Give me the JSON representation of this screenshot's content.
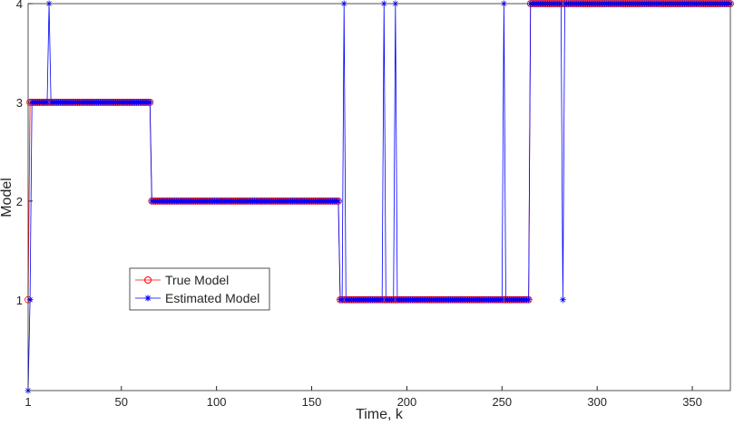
{
  "chart_data": {
    "type": "line",
    "x_label": "Time, k",
    "y_label": "Model",
    "xlim": [
      1,
      370
    ],
    "ylim": [
      0.08,
      4
    ],
    "xticks": [
      1,
      50,
      100,
      150,
      200,
      250,
      300,
      350
    ],
    "yticks": [
      1,
      2,
      3,
      4
    ],
    "legend": "lower-left",
    "x": [
      1,
      2,
      3,
      4,
      5,
      6,
      7,
      8,
      9,
      10,
      11,
      12,
      13,
      14,
      15,
      16,
      17,
      18,
      19,
      20,
      21,
      22,
      23,
      24,
      25,
      26,
      27,
      28,
      29,
      30,
      31,
      32,
      33,
      34,
      35,
      36,
      37,
      38,
      39,
      40,
      41,
      42,
      43,
      44,
      45,
      46,
      47,
      48,
      49,
      50,
      51,
      52,
      53,
      54,
      55,
      56,
      57,
      58,
      59,
      60,
      61,
      62,
      63,
      64,
      65,
      66,
      67,
      68,
      69,
      70,
      71,
      72,
      73,
      74,
      75,
      76,
      77,
      78,
      79,
      80,
      81,
      82,
      83,
      84,
      85,
      86,
      87,
      88,
      89,
      90,
      91,
      92,
      93,
      94,
      95,
      96,
      97,
      98,
      99,
      100,
      101,
      102,
      103,
      104,
      105,
      106,
      107,
      108,
      109,
      110,
      111,
      112,
      113,
      114,
      115,
      116,
      117,
      118,
      119,
      120,
      121,
      122,
      123,
      124,
      125,
      126,
      127,
      128,
      129,
      130,
      131,
      132,
      133,
      134,
      135,
      136,
      137,
      138,
      139,
      140,
      141,
      142,
      143,
      144,
      145,
      146,
      147,
      148,
      149,
      150,
      151,
      152,
      153,
      154,
      155,
      156,
      157,
      158,
      159,
      160,
      161,
      162,
      163,
      164,
      165,
      166,
      167,
      168,
      169,
      170,
      171,
      172,
      173,
      174,
      175,
      176,
      177,
      178,
      179,
      180,
      181,
      182,
      183,
      184,
      185,
      186,
      187,
      188,
      189,
      190,
      191,
      192,
      193,
      194,
      195,
      196,
      197,
      198,
      199,
      200,
      201,
      202,
      203,
      204,
      205,
      206,
      207,
      208,
      209,
      210,
      211,
      212,
      213,
      214,
      215,
      216,
      217,
      218,
      219,
      220,
      221,
      222,
      223,
      224,
      225,
      226,
      227,
      228,
      229,
      230,
      231,
      232,
      233,
      234,
      235,
      236,
      237,
      238,
      239,
      240,
      241,
      242,
      243,
      244,
      245,
      246,
      247,
      248,
      249,
      250,
      251,
      252,
      253,
      254,
      255,
      256,
      257,
      258,
      259,
      260,
      261,
      262,
      263,
      264,
      265,
      266,
      267,
      268,
      269,
      270,
      271,
      272,
      273,
      274,
      275,
      276,
      277,
      278,
      279,
      280,
      281,
      282,
      283,
      284,
      285,
      286,
      287,
      288,
      289,
      290,
      291,
      292,
      293,
      294,
      295,
      296,
      297,
      298,
      299,
      300,
      301,
      302,
      303,
      304,
      305,
      306,
      307,
      308,
      309,
      310,
      311,
      312,
      313,
      314,
      315,
      316,
      317,
      318,
      319,
      320,
      321,
      322,
      323,
      324,
      325,
      326,
      327,
      328,
      329,
      330,
      331,
      332,
      333,
      334,
      335,
      336,
      337,
      338,
      339,
      340,
      341,
      342,
      343,
      344,
      345,
      346,
      347,
      348,
      349,
      350,
      351,
      352,
      353,
      354,
      355,
      356,
      357,
      358,
      359,
      360,
      361,
      362,
      363,
      364,
      365,
      366,
      367,
      368,
      369,
      370
    ],
    "series": [
      {
        "name": "True Model",
        "color": "#ff0000",
        "marker": "circle",
        "values": [
          1,
          3,
          3,
          3,
          3,
          3,
          3,
          3,
          3,
          3,
          3,
          3,
          3,
          3,
          3,
          3,
          3,
          3,
          3,
          3,
          3,
          3,
          3,
          3,
          3,
          3,
          3,
          3,
          3,
          3,
          3,
          3,
          3,
          3,
          3,
          3,
          3,
          3,
          3,
          3,
          3,
          3,
          3,
          3,
          3,
          3,
          3,
          3,
          3,
          3,
          3,
          3,
          3,
          3,
          3,
          3,
          3,
          3,
          3,
          3,
          3,
          3,
          3,
          3,
          3,
          2,
          2,
          2,
          2,
          2,
          2,
          2,
          2,
          2,
          2,
          2,
          2,
          2,
          2,
          2,
          2,
          2,
          2,
          2,
          2,
          2,
          2,
          2,
          2,
          2,
          2,
          2,
          2,
          2,
          2,
          2,
          2,
          2,
          2,
          2,
          2,
          2,
          2,
          2,
          2,
          2,
          2,
          2,
          2,
          2,
          2,
          2,
          2,
          2,
          2,
          2,
          2,
          2,
          2,
          2,
          2,
          2,
          2,
          2,
          2,
          2,
          2,
          2,
          2,
          2,
          2,
          2,
          2,
          2,
          2,
          2,
          2,
          2,
          2,
          2,
          2,
          2,
          2,
          2,
          2,
          2,
          2,
          2,
          2,
          2,
          2,
          2,
          2,
          2,
          2,
          2,
          2,
          2,
          2,
          2,
          2,
          2,
          2,
          2,
          1,
          1,
          1,
          1,
          1,
          1,
          1,
          1,
          1,
          1,
          1,
          1,
          1,
          1,
          1,
          1,
          1,
          1,
          1,
          1,
          1,
          1,
          1,
          1,
          1,
          1,
          1,
          1,
          1,
          1,
          1,
          1,
          1,
          1,
          1,
          1,
          1,
          1,
          1,
          1,
          1,
          1,
          1,
          1,
          1,
          1,
          1,
          1,
          1,
          1,
          1,
          1,
          1,
          1,
          1,
          1,
          1,
          1,
          1,
          1,
          1,
          1,
          1,
          1,
          1,
          1,
          1,
          1,
          1,
          1,
          1,
          1,
          1,
          1,
          1,
          1,
          1,
          1,
          1,
          1,
          1,
          1,
          1,
          1,
          1,
          1,
          1,
          1,
          1,
          1,
          1,
          1,
          1,
          1,
          1,
          1,
          1,
          1,
          1,
          1,
          4,
          4,
          4,
          4,
          4,
          4,
          4,
          4,
          4,
          4,
          4,
          4,
          4,
          4,
          4,
          4,
          4,
          4,
          4,
          4,
          4,
          4,
          4,
          4,
          4,
          4,
          4,
          4,
          4,
          4,
          4,
          4,
          4,
          4,
          4,
          4,
          4,
          4,
          4,
          4,
          4,
          4,
          4,
          4,
          4,
          4,
          4,
          4,
          4,
          4,
          4,
          4,
          4,
          4,
          4,
          4,
          4,
          4,
          4,
          4,
          4,
          4,
          4,
          4,
          4,
          4,
          4,
          4,
          4,
          4,
          4,
          4,
          4,
          4,
          4,
          4,
          4,
          4,
          4,
          4,
          4,
          4,
          4,
          4,
          4,
          4,
          4,
          4,
          4,
          4,
          4,
          4,
          4,
          4,
          4,
          4,
          4,
          4,
          4,
          4,
          4,
          4,
          4,
          4,
          4,
          4
        ]
      },
      {
        "name": "Estimated Model",
        "color": "#0000ff",
        "marker": "star",
        "values": [
          0.08,
          1,
          3,
          3,
          3,
          3,
          3,
          3,
          3,
          3,
          3,
          4,
          3,
          3,
          3,
          3,
          3,
          3,
          3,
          3,
          3,
          3,
          3,
          3,
          3,
          3,
          3,
          3,
          3,
          3,
          3,
          3,
          3,
          3,
          3,
          3,
          3,
          3,
          3,
          3,
          3,
          3,
          3,
          3,
          3,
          3,
          3,
          3,
          3,
          3,
          3,
          3,
          3,
          3,
          3,
          3,
          3,
          3,
          3,
          3,
          3,
          3,
          3,
          3,
          3,
          2,
          2,
          2,
          2,
          2,
          2,
          2,
          2,
          2,
          2,
          2,
          2,
          2,
          2,
          2,
          2,
          2,
          2,
          2,
          2,
          2,
          2,
          2,
          2,
          2,
          2,
          2,
          2,
          2,
          2,
          2,
          2,
          2,
          2,
          2,
          2,
          2,
          2,
          2,
          2,
          2,
          2,
          2,
          2,
          2,
          2,
          2,
          2,
          2,
          2,
          2,
          2,
          2,
          2,
          2,
          2,
          2,
          2,
          2,
          2,
          2,
          2,
          2,
          2,
          2,
          2,
          2,
          2,
          2,
          2,
          2,
          2,
          2,
          2,
          2,
          2,
          2,
          2,
          2,
          2,
          2,
          2,
          2,
          2,
          2,
          2,
          2,
          2,
          2,
          2,
          2,
          2,
          2,
          2,
          2,
          2,
          2,
          2,
          2,
          1,
          1,
          4,
          1,
          1,
          1,
          1,
          1,
          1,
          1,
          1,
          1,
          1,
          1,
          1,
          1,
          1,
          1,
          1,
          1,
          1,
          1,
          1,
          4,
          1,
          1,
          1,
          1,
          1,
          4,
          1,
          1,
          1,
          1,
          1,
          1,
          1,
          1,
          1,
          1,
          1,
          1,
          1,
          1,
          1,
          1,
          1,
          1,
          1,
          1,
          1,
          1,
          1,
          1,
          1,
          1,
          1,
          1,
          1,
          1,
          1,
          1,
          1,
          1,
          1,
          1,
          1,
          1,
          1,
          1,
          1,
          1,
          1,
          1,
          1,
          1,
          1,
          1,
          1,
          1,
          1,
          1,
          1,
          1,
          1,
          1,
          4,
          1,
          1,
          1,
          1,
          1,
          1,
          1,
          1,
          1,
          1,
          1,
          1,
          1,
          4,
          4,
          4,
          4,
          4,
          4,
          4,
          4,
          4,
          4,
          4,
          4,
          4,
          4,
          4,
          4,
          4,
          1,
          4,
          4,
          4,
          4,
          4,
          4,
          4,
          4,
          4,
          4,
          4,
          4,
          4,
          4,
          4,
          4,
          4,
          4,
          4,
          4,
          4,
          4,
          4,
          4,
          4,
          4,
          4,
          4,
          4,
          4,
          4,
          4,
          4,
          4,
          4,
          4,
          4,
          4,
          4,
          4,
          4,
          4,
          4,
          4,
          4,
          4,
          4,
          4,
          4,
          4,
          4,
          4,
          4,
          4,
          4,
          4,
          4,
          4,
          4,
          4,
          4,
          4,
          4,
          4,
          4,
          4,
          4,
          4,
          4,
          4,
          4,
          4,
          4,
          4,
          4,
          4,
          4,
          4,
          4,
          4,
          4,
          4,
          4,
          4,
          4,
          4,
          4,
          4
        ]
      }
    ]
  }
}
